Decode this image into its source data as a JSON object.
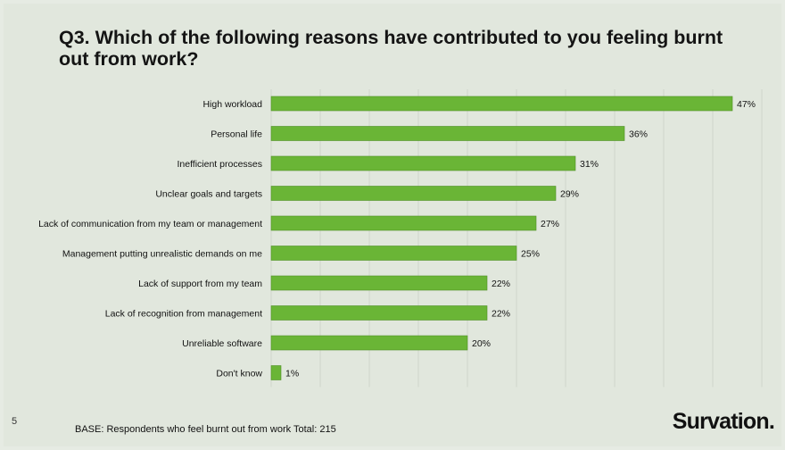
{
  "title": "Q3. Which of the following reasons have contributed to you feeling burnt out from work?",
  "footer": {
    "page_number": "5",
    "base_note": "BASE: Respondents who feel burnt out from work Total: 215",
    "logo": "Survation."
  },
  "colors": {
    "bar": "#6ab536",
    "bar_edge": "#4f8f25",
    "gridline": "#cfd6ca"
  },
  "chart_data": {
    "type": "bar",
    "orientation": "horizontal",
    "title": "Q3. Which of the following reasons have contributed to you feeling burnt out from work?",
    "categories": [
      "High workload",
      "Personal life",
      "Inefficient processes",
      "Unclear goals and targets",
      "Lack of communication from my team or management",
      "Management putting unrealistic demands on me",
      "Lack of support from my team",
      "Lack of recognition from management",
      "Unreliable software",
      "Don't know"
    ],
    "values": [
      47,
      36,
      31,
      29,
      27,
      25,
      22,
      22,
      20,
      1
    ],
    "value_labels": [
      "47%",
      "36%",
      "31%",
      "29%",
      "27%",
      "25%",
      "22%",
      "22%",
      "20%",
      "1%"
    ],
    "unit": "%",
    "xlim": [
      0,
      50
    ],
    "grid": true,
    "legend": "none"
  }
}
